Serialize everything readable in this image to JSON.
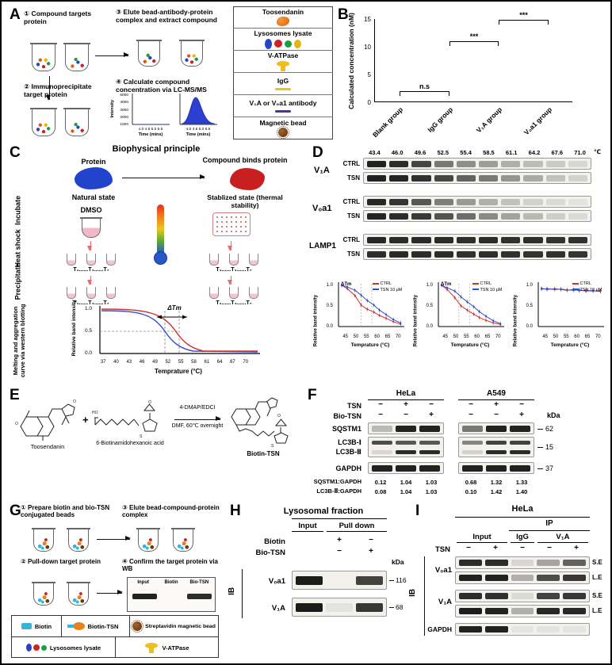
{
  "colors": {
    "ctrl_series": "#d03030",
    "tsn_series": "#3050c8",
    "toosendanin": "#d95f0e",
    "biotin": "#35b6d9",
    "bead": "#6b3a10",
    "igg": "#e7c31c",
    "antibody": "#5c2d91",
    "vatpase": "#edbe1e"
  },
  "panelA": {
    "label": "A",
    "steps": {
      "s1": "① Compound targets protein",
      "s2": "② Immunoprecipitate target protein",
      "s3": "③ Elute bead-antibody-protein complex and extract compound",
      "s4": "④ Calculate compound concentration via LC-MS/MS"
    },
    "chromatogram": {
      "ylabel": "Intensity",
      "yticks": [
        "5000",
        "4000",
        "3000",
        "2000",
        "1000"
      ],
      "xticks": "4.0 4.5 5.0 5.5",
      "xlabel": "Time (mins)"
    },
    "legend": {
      "items": [
        {
          "label": "Toosendanin"
        },
        {
          "label": "Lysosomes lysate"
        },
        {
          "label": "V-ATPase"
        },
        {
          "label": "IgG"
        },
        {
          "label": "V₁A or V₀a1 antibody"
        },
        {
          "label": "Magnetic bead"
        }
      ]
    }
  },
  "panelB": {
    "label": "B",
    "chart_data": {
      "type": "bar",
      "categories": [
        "Blank group",
        "IgG group",
        "V₁A group",
        "V₀a1 group"
      ],
      "values": [
        0.6,
        0.85,
        8.5,
        13.8
      ],
      "errors": [
        0.25,
        0.3,
        1.9,
        0.5
      ],
      "bar_colors": [
        "#f2f2f2",
        "#f7e9a0",
        "#dff0df",
        "#d8e9f7"
      ],
      "dot_colors": [
        "#8a8a8a",
        "#c8a415",
        "#2e7d32",
        "#4a79b8"
      ],
      "ylabel": "Calculated concentration (nM)",
      "ylim": [
        0,
        15
      ],
      "yticks": [
        "0",
        "5",
        "10",
        "15"
      ],
      "significance": [
        {
          "text": "n.s",
          "from": 0,
          "to": 1,
          "y": 2.0
        },
        {
          "text": "***",
          "from": 1,
          "to": 2,
          "y": 11.0
        },
        {
          "text": "***",
          "from": 2,
          "to": 3,
          "y": 14.8
        }
      ]
    }
  },
  "panelC": {
    "label": "C",
    "title": "Biophysical principle",
    "natural": {
      "name": "Protein",
      "state": "Natural state"
    },
    "bound": {
      "name": "Compound binds protein",
      "state": "Stablized state (thermal stability)"
    },
    "dmso": "DMSO",
    "stages": [
      "Incubate",
      "Heat shock",
      "Precipitate",
      "Melting and aggregation curve via western blotting"
    ],
    "tubes_row": "T₁......T₄......T₇",
    "plot": {
      "delta_tm": "ΔTm",
      "ylabel": "Relative band intensity",
      "yticks": [
        "1.0",
        "0.5",
        "0.0"
      ],
      "xticks": [
        "37",
        "40",
        "43",
        "46",
        "49",
        "52",
        "55",
        "58",
        "61",
        "64",
        "67",
        "70"
      ],
      "xlabel": "Temprature (°C)"
    }
  },
  "panelD": {
    "label": "D",
    "temps": [
      "43.4",
      "46.0",
      "49.6",
      "52.5",
      "55.4",
      "58.5",
      "61.1",
      "64.2",
      "67.6",
      "71.0"
    ],
    "temp_unit": "℃",
    "x": [
      43.4,
      46.0,
      49.6,
      52.5,
      55.4,
      58.5,
      61.1,
      64.2,
      67.6,
      71.0
    ],
    "groups": [
      {
        "name": "V₁A",
        "row1": "CTRL",
        "row2": "TSN"
      },
      {
        "name": "V₀a1",
        "row1": "CTRL",
        "row2": "TSN"
      },
      {
        "name": "LAMP1",
        "row1": "CTRL",
        "row2": "TSN"
      }
    ],
    "bands": {
      "v1a_ctrl": [
        0.95,
        0.9,
        0.78,
        0.55,
        0.45,
        0.38,
        0.3,
        0.24,
        0.18,
        0.12
      ],
      "v1a_tsn": [
        0.95,
        0.93,
        0.88,
        0.78,
        0.65,
        0.55,
        0.42,
        0.32,
        0.22,
        0.14
      ],
      "v0a1_ctrl": [
        0.92,
        0.86,
        0.7,
        0.52,
        0.4,
        0.3,
        0.22,
        0.15,
        0.1,
        0.06
      ],
      "v0a1_tsn": [
        0.93,
        0.9,
        0.84,
        0.72,
        0.6,
        0.48,
        0.36,
        0.26,
        0.16,
        0.1
      ],
      "lamp1_ctrl": [
        0.92,
        0.9,
        0.91,
        0.9,
        0.89,
        0.9,
        0.88,
        0.89,
        0.87,
        0.88
      ],
      "lamp1_tsn": [
        0.9,
        0.91,
        0.9,
        0.9,
        0.88,
        0.89,
        0.88,
        0.87,
        0.88,
        0.86
      ]
    },
    "series_colors": {
      "ctrl": "#d03030",
      "tsn": "#3050c8"
    },
    "chart_axis": {
      "ylabel": "Relative band intensity",
      "yticks": [
        "1.0",
        "0.5",
        "0.0"
      ],
      "xticks": [
        "45",
        "50",
        "55",
        "60",
        "65",
        "70"
      ],
      "xlabel": "Temprature (°C)"
    },
    "chart_data": [
      {
        "type": "line",
        "name": "V₁A",
        "delta_tm": "ΔTm",
        "legend": [
          "CTRL",
          "TSN 10 μM"
        ],
        "tm_lines": [
          52.5,
          57.5
        ],
        "ctrl": [
          1.0,
          0.92,
          0.75,
          0.52,
          0.42,
          0.35,
          0.27,
          0.2,
          0.12,
          0.06
        ],
        "tsn": [
          1.0,
          0.96,
          0.88,
          0.76,
          0.63,
          0.52,
          0.4,
          0.29,
          0.17,
          0.09
        ]
      },
      {
        "type": "line",
        "name": "V₀a1",
        "delta_tm": "ΔTm",
        "legend": [
          "CTRL",
          "TSN 10 μM"
        ],
        "tm_lines": [
          51.5,
          56.5
        ],
        "ctrl": [
          1.0,
          0.9,
          0.7,
          0.5,
          0.4,
          0.3,
          0.22,
          0.15,
          0.09,
          0.05
        ],
        "tsn": [
          1.0,
          0.94,
          0.86,
          0.72,
          0.6,
          0.48,
          0.36,
          0.25,
          0.14,
          0.07
        ]
      },
      {
        "type": "line",
        "name": "LAMP1",
        "legend": [
          "CTRL",
          "TSN 10 μM"
        ],
        "ctrl": [
          0.93,
          0.9,
          0.92,
          0.9,
          0.88,
          0.9,
          0.87,
          0.88,
          0.86,
          0.87
        ],
        "tsn": [
          0.91,
          0.92,
          0.9,
          0.91,
          0.89,
          0.88,
          0.89,
          0.86,
          0.87,
          0.85
        ]
      }
    ]
  },
  "panelE": {
    "label": "E",
    "reactant1": "Toosendanin",
    "plus": "+",
    "reactant2": "6-Biotinamidohexanoic acid",
    "cond_top": "4-DMAP/EDCI",
    "cond_bottom": "DMF, 60℃ overnight",
    "product": "Biotin-TSN"
  },
  "panelF": {
    "label": "F",
    "cell_lines": [
      "HeLa",
      "A549"
    ],
    "rows": {
      "tsn_label": "TSN",
      "tsn_hela": [
        "−",
        "+",
        "−"
      ],
      "tsn_a549": [
        "−",
        "+",
        "−"
      ],
      "bio_label": "Bio-TSN",
      "bio_hela": [
        "−",
        "−",
        "+"
      ],
      "bio_a549": [
        "−",
        "−",
        "+"
      ]
    },
    "kda": "kDa",
    "targets": {
      "sqstm1": "SQSTM1",
      "lc3b1": "LC3B-Ⅰ",
      "lc3b2": "LC3B-Ⅱ",
      "gapdh": "GAPDH"
    },
    "markers": {
      "sqstm1": "62",
      "lc3b": "15",
      "gapdh": "37"
    },
    "bands": {
      "sqstm1_hela": [
        0.25,
        0.95,
        0.95
      ],
      "sqstm1_a549": [
        0.55,
        0.95,
        0.95
      ],
      "lc3b1_hela": [
        0.75,
        0.7,
        0.7
      ],
      "lc3b1_a549": [
        0.5,
        0.8,
        0.8
      ],
      "lc3b2_hela": [
        0.12,
        0.9,
        0.9
      ],
      "lc3b2_a549": [
        0.15,
        0.9,
        0.9
      ],
      "gapdh_hela": [
        0.95,
        0.95,
        0.95
      ],
      "gapdh_a549": [
        0.95,
        0.95,
        0.95
      ]
    },
    "ratios": [
      {
        "label": "SQSTM1:GAPDH",
        "hela": [
          "0.12",
          "1.04",
          "1.03"
        ],
        "a549": [
          "0.68",
          "1.32",
          "1.33"
        ]
      },
      {
        "label": "LC3B-Ⅱ:GAPDH",
        "hela": [
          "0.08",
          "1.04",
          "1.03"
        ],
        "a549": [
          "0.10",
          "1.42",
          "1.40"
        ]
      }
    ]
  },
  "panelG": {
    "label": "G",
    "steps": {
      "s1": "① Prepare biotin and bio-TSN conjugated beads",
      "s2": "② Pull-down target protein",
      "s3": "③ Elute bead-compound-protein complex",
      "s4": "④ Confirm the target protein via WB"
    },
    "mini_blot": {
      "lanes": [
        "Input",
        "Biotin",
        "Bio-TSN"
      ],
      "bands": [
        0.95,
        0,
        0.9
      ]
    },
    "legend": {
      "biotin": "Biotin",
      "biotin_tsn": "Biotin-TSN",
      "bead": "Streptavidin magnetic bead",
      "lysate": "Lysosomes lysate",
      "vatpase": "V-ATPase"
    }
  },
  "panelH": {
    "label": "H",
    "title": "Lysosomal fraction",
    "col_input": "Input",
    "col_pulldown": "Pull down",
    "rows": {
      "biotin_label": "Biotin",
      "biotin": [
        "",
        "+",
        "−"
      ],
      "bio_label": "Bio-TSN",
      "bio": [
        "",
        "−",
        "+"
      ]
    },
    "kda": "kDa",
    "ib": "IB",
    "blots": [
      {
        "target": "V₀a1",
        "kda": "116",
        "bands": [
          0.98,
          0,
          0.8
        ]
      },
      {
        "target": "V₁A",
        "kda": "68",
        "bands": [
          0.98,
          0.06,
          0.85
        ]
      }
    ]
  },
  "panelI": {
    "label": "I",
    "title": "HeLa",
    "ip": "IP",
    "cols": {
      "input": "Input",
      "igg": "IgG",
      "v1a": "V₁A"
    },
    "tsn_label": "TSN",
    "tsn": [
      "−",
      "+",
      "−",
      "−",
      "+"
    ],
    "ib": "IB",
    "row_labels": {
      "v0a1": "V₀a1",
      "v1a": "V₁A",
      "gapdh": "GAPDH"
    },
    "exposures": [
      "S.E",
      "L.E",
      "S.E",
      "L.E"
    ],
    "bands": {
      "v0a1_se": [
        0.9,
        0.9,
        0.12,
        0.35,
        0.65
      ],
      "v0a1_le": [
        0.95,
        0.95,
        0.3,
        0.75,
        0.85
      ],
      "v1a_se": [
        0.9,
        0.88,
        0.1,
        0.8,
        0.85
      ],
      "v1a_le": [
        0.97,
        0.95,
        0.3,
        0.92,
        0.92
      ],
      "gapdh": [
        0.95,
        0.95,
        0.05,
        0.06,
        0.05
      ]
    }
  }
}
